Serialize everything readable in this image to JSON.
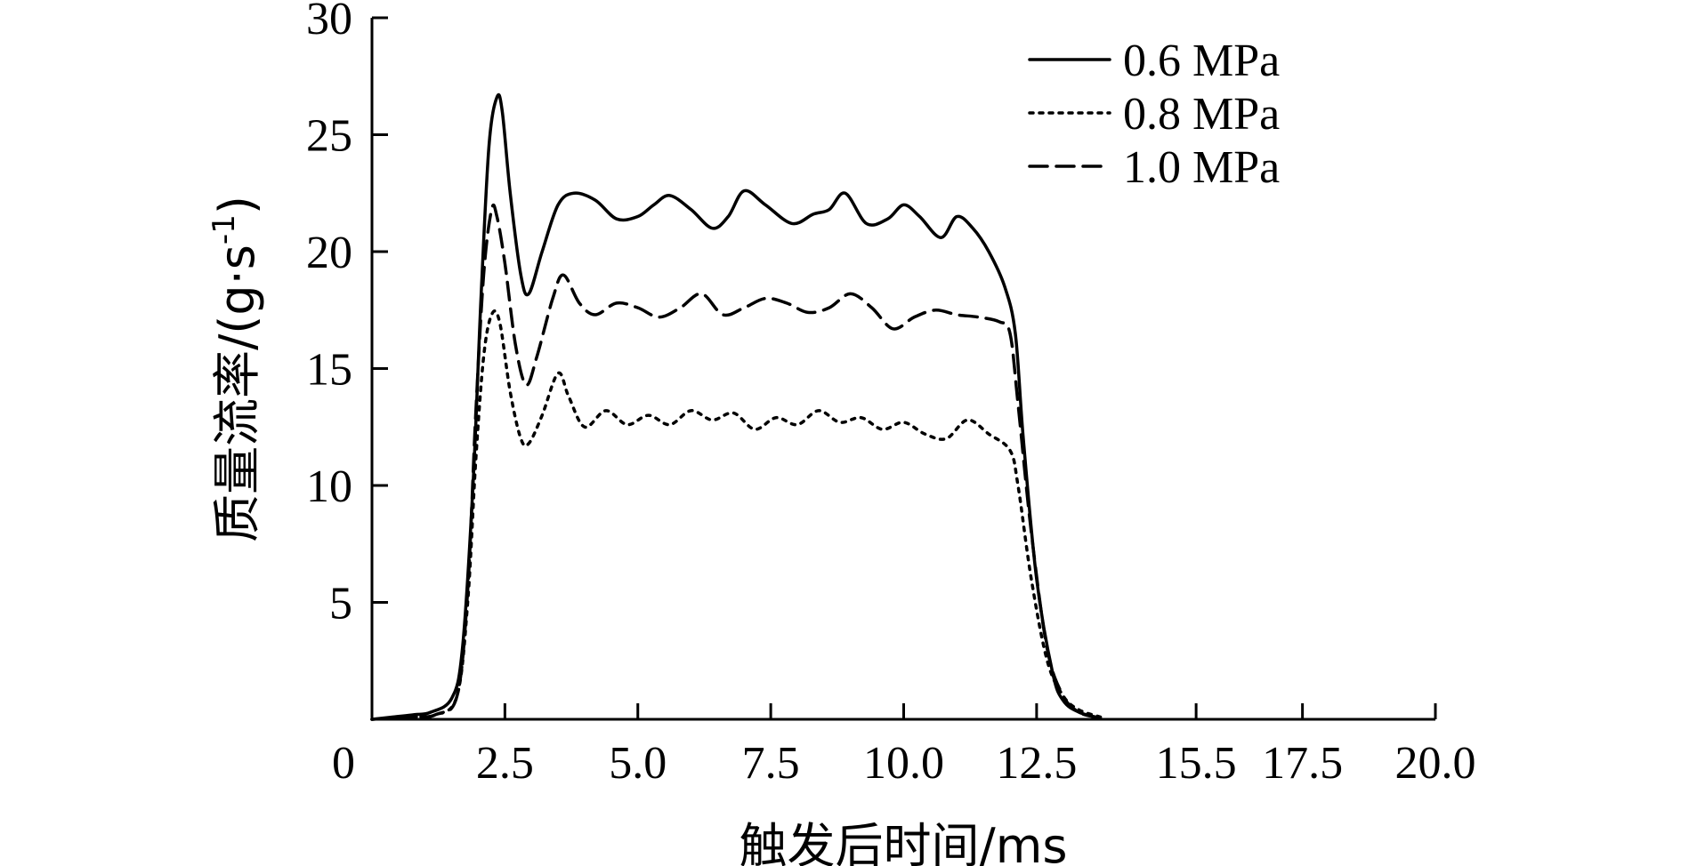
{
  "chart_data": {
    "type": "line",
    "title": "",
    "xlabel": "触发后时间/ms",
    "ylabel": "质量流率/(g·s",
    "ylabel_sup": "-1",
    "ylabel_end": ")",
    "xlim": [
      0,
      20
    ],
    "ylim": [
      0,
      30
    ],
    "x_ticks": [
      0,
      2.5,
      5.0,
      7.5,
      10.0,
      12.5,
      15.5,
      17.5,
      20.0
    ],
    "x_tick_labels": [
      "0",
      "2.5",
      "5.0",
      "7.5",
      "10.0",
      "12.5",
      "15.5",
      "17.5",
      "20.0"
    ],
    "y_ticks": [
      5,
      10,
      15,
      20,
      25,
      30
    ],
    "y_tick_labels": [
      "5",
      "10",
      "15",
      "20",
      "25",
      "30"
    ],
    "grid": false,
    "legend_position": "top-right",
    "series": [
      {
        "name": "0.6 MPa",
        "dash": "solid",
        "x": [
          0,
          0.4,
          0.8,
          1.1,
          1.5,
          1.7,
          1.9,
          2.05,
          2.2,
          2.35,
          2.45,
          2.6,
          2.8,
          2.95,
          3.2,
          3.5,
          3.8,
          4.2,
          4.6,
          5.0,
          5.3,
          5.6,
          6.0,
          6.4,
          6.7,
          7.0,
          7.4,
          7.9,
          8.3,
          8.6,
          8.9,
          9.3,
          9.7,
          10.0,
          10.3,
          10.7,
          11.0,
          11.3,
          11.6,
          11.9,
          12.1,
          12.25,
          12.5,
          12.8,
          13.0,
          13.3,
          13.7
        ],
        "y": [
          0,
          0.1,
          0.2,
          0.3,
          0.9,
          3.0,
          10.0,
          18.0,
          24.5,
          26.6,
          26.0,
          22.5,
          19.0,
          18.2,
          20.0,
          22.0,
          22.5,
          22.2,
          21.4,
          21.5,
          22.0,
          22.4,
          21.8,
          21.0,
          21.5,
          22.6,
          22.0,
          21.2,
          21.6,
          21.8,
          22.5,
          21.2,
          21.4,
          22.0,
          21.5,
          20.6,
          21.5,
          21.0,
          20.0,
          18.5,
          16.5,
          12.0,
          6.0,
          2.0,
          0.8,
          0.3,
          0.05
        ]
      },
      {
        "name": "0.8 MPa",
        "dash": "dotted",
        "x": [
          0,
          0.4,
          0.8,
          1.2,
          1.6,
          1.8,
          1.95,
          2.1,
          2.25,
          2.4,
          2.6,
          2.8,
          2.95,
          3.2,
          3.5,
          3.7,
          4.0,
          4.4,
          4.8,
          5.2,
          5.6,
          6.0,
          6.4,
          6.8,
          7.2,
          7.6,
          8.0,
          8.4,
          8.8,
          9.2,
          9.6,
          10.0,
          10.4,
          10.8,
          11.2,
          11.6,
          12.0,
          12.15,
          12.4,
          12.7,
          13.0,
          13.3,
          13.7
        ],
        "y": [
          0,
          0.05,
          0.1,
          0.2,
          1.0,
          5.0,
          11.0,
          15.5,
          17.3,
          17.0,
          14.0,
          12.0,
          11.8,
          13.0,
          14.8,
          13.8,
          12.5,
          13.2,
          12.6,
          13.0,
          12.6,
          13.2,
          12.8,
          13.1,
          12.4,
          12.9,
          12.6,
          13.2,
          12.7,
          12.9,
          12.4,
          12.7,
          12.2,
          12.0,
          12.8,
          12.2,
          11.5,
          10.0,
          6.0,
          2.5,
          1.0,
          0.4,
          0.1
        ]
      },
      {
        "name": "1.0 MPa",
        "dash": "dashed",
        "x": [
          0,
          0.4,
          0.8,
          1.2,
          1.6,
          1.8,
          1.95,
          2.1,
          2.25,
          2.35,
          2.5,
          2.7,
          2.9,
          3.1,
          3.4,
          3.6,
          3.9,
          4.2,
          4.6,
          5.0,
          5.4,
          5.8,
          6.2,
          6.6,
          7.0,
          7.4,
          7.8,
          8.2,
          8.6,
          9.0,
          9.4,
          9.8,
          10.2,
          10.6,
          11.0,
          11.4,
          11.8,
          12.0,
          12.15,
          12.4,
          12.7,
          13.0,
          13.3,
          13.6
        ],
        "y": [
          0,
          0.05,
          0.1,
          0.2,
          1.0,
          5.5,
          13.0,
          19.0,
          21.8,
          21.5,
          19.5,
          16.0,
          14.3,
          15.5,
          18.0,
          19.0,
          17.8,
          17.3,
          17.8,
          17.6,
          17.2,
          17.6,
          18.2,
          17.3,
          17.6,
          18.0,
          17.8,
          17.4,
          17.6,
          18.2,
          17.6,
          16.7,
          17.2,
          17.5,
          17.3,
          17.2,
          17.0,
          16.5,
          13.5,
          8.0,
          3.0,
          1.0,
          0.3,
          0.1
        ]
      }
    ]
  }
}
